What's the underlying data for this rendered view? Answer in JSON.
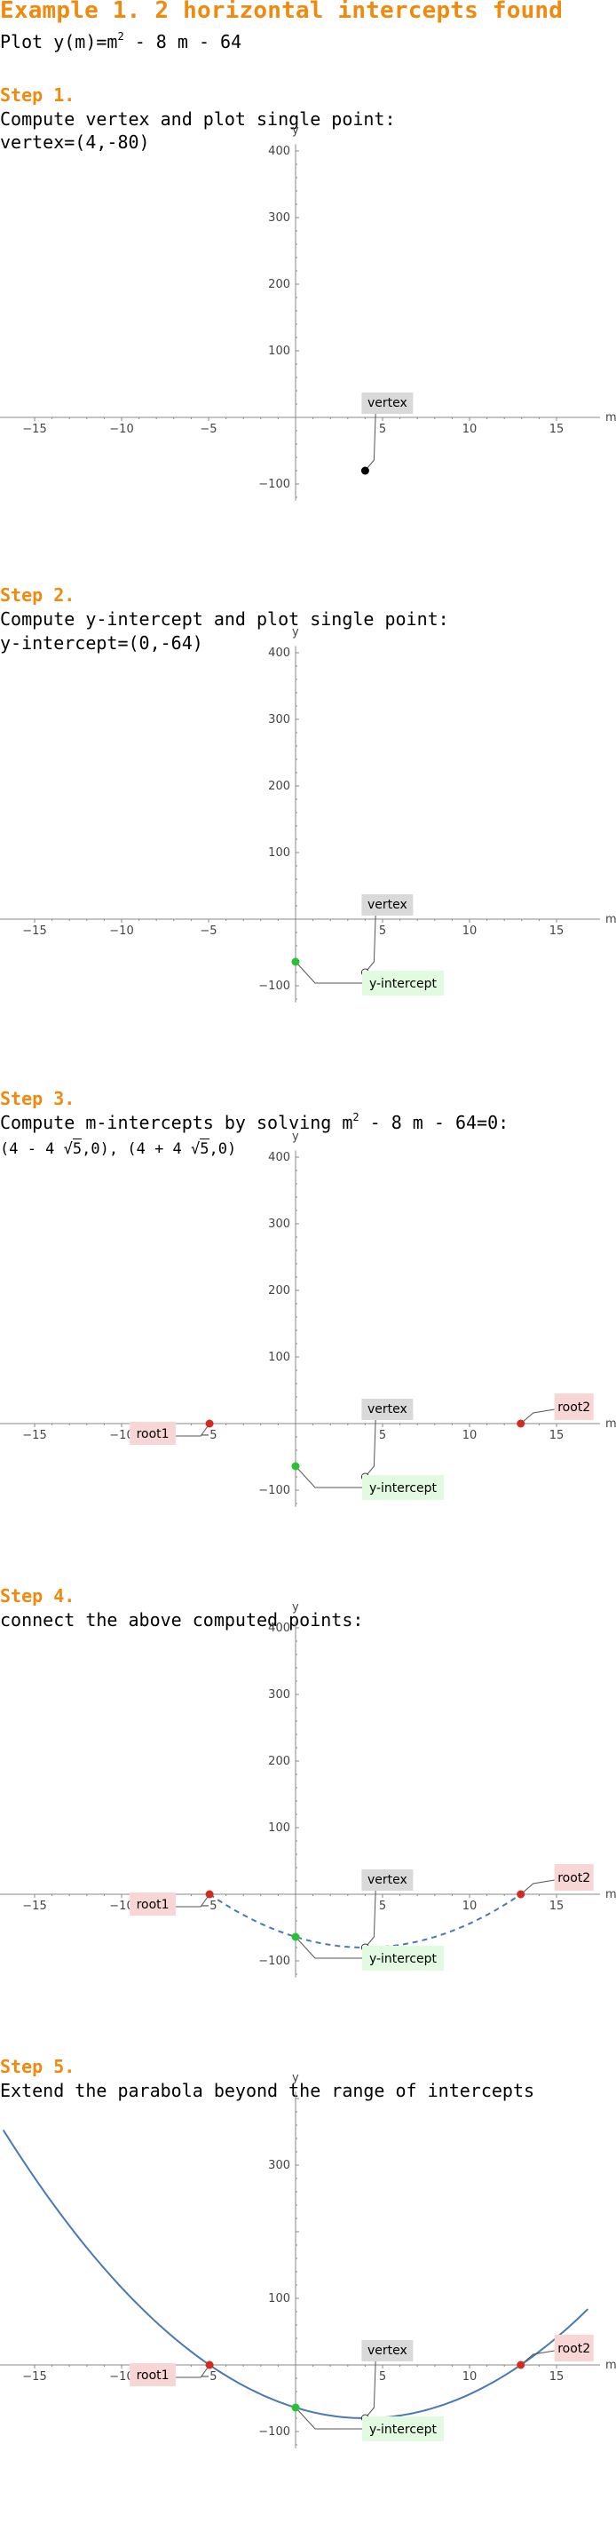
{
  "title": "Example 1. 2 horizontal intercepts found",
  "intro": {
    "text": "Plot y(m)=m",
    "exp": "2",
    "rest": " - 8 m - 64"
  },
  "steps": [
    {
      "heading": "Step 1.",
      "lines": [
        "Compute vertex and plot single point:",
        "vertex=(4,-80)"
      ]
    },
    {
      "heading": "Step 2.",
      "lines": [
        "Compute y-intercept and plot single point:",
        "y-intercept=(0,-64)"
      ]
    },
    {
      "heading": "Step 3.",
      "line1": {
        "a": "Compute m-intercepts by solving m",
        "exp": "2",
        "b": " - 8 m - 64=0:"
      },
      "roots": {
        "r1a": "(4 - 4 ",
        "r1rad": "5",
        "r1b": ",0),",
        "r2a": "(4 + 4 ",
        "r2rad": "5",
        "r2b": ",0)"
      }
    },
    {
      "heading": "Step 4.",
      "lines": [
        "connect the above computed points:"
      ]
    },
    {
      "heading": "Step 5.",
      "lines": [
        "Extend the parabola beyond the range of intercepts"
      ]
    }
  ],
  "colors": {
    "heading": "#f08a0f",
    "curve": "#4a78b5",
    "vertex_box": "#d9d9d9",
    "yint_box": "#e2fbe0",
    "root_box": "#f9d6d6",
    "green_point": "#27c233",
    "red_point": "#d42a20"
  },
  "chart_data": [
    {
      "type": "scatter",
      "xlabel": "m",
      "ylabel": "y",
      "xlim": [
        -17,
        17.5
      ],
      "ylim": [
        -125,
        410
      ],
      "xticks": [
        -15,
        -10,
        -5,
        5,
        10,
        15
      ],
      "yticks": [
        -100,
        100,
        200,
        300,
        400
      ],
      "points": [
        {
          "x": 4,
          "y": -80,
          "label": "vertex",
          "style": "black"
        }
      ]
    },
    {
      "type": "scatter",
      "xlabel": "m",
      "ylabel": "y",
      "xlim": [
        -17,
        17.5
      ],
      "ylim": [
        -125,
        410
      ],
      "xticks": [
        -15,
        -10,
        -5,
        5,
        10,
        15
      ],
      "yticks": [
        -100,
        100,
        200,
        300,
        400
      ],
      "points": [
        {
          "x": 4,
          "y": -80,
          "label": "vertex",
          "style": "open"
        },
        {
          "x": 0,
          "y": -64,
          "label": "y-intercept",
          "style": "green"
        }
      ]
    },
    {
      "type": "scatter",
      "xlabel": "m",
      "ylabel": "y",
      "xlim": [
        -17,
        17.5
      ],
      "ylim": [
        -125,
        410
      ],
      "xticks": [
        -15,
        -10,
        -5,
        5,
        10,
        15
      ],
      "yticks": [
        -100,
        100,
        200,
        300,
        400
      ],
      "points": [
        {
          "x": 4,
          "y": -80,
          "label": "vertex",
          "style": "open"
        },
        {
          "x": 0,
          "y": -64,
          "label": "y-intercept",
          "style": "green"
        },
        {
          "x": -4.944,
          "y": 0,
          "label": "root1",
          "style": "red"
        },
        {
          "x": 12.944,
          "y": 0,
          "label": "root2",
          "style": "red"
        }
      ]
    },
    {
      "type": "line",
      "xlabel": "m",
      "ylabel": "y",
      "xlim": [
        -17,
        17.5
      ],
      "ylim": [
        -125,
        410
      ],
      "xticks": [
        -15,
        -10,
        -5,
        5,
        10,
        15
      ],
      "yticks": [
        -100,
        100,
        200,
        300,
        400
      ],
      "curve": {
        "function": "m^2 - 8 m - 64",
        "from": -4.944,
        "to": 12.944,
        "dashed": true
      },
      "points": [
        {
          "x": 4,
          "y": -80,
          "label": "vertex",
          "style": "open"
        },
        {
          "x": 0,
          "y": -64,
          "label": "y-intercept",
          "style": "green"
        },
        {
          "x": -4.944,
          "y": 0,
          "label": "root1",
          "style": "red"
        },
        {
          "x": 12.944,
          "y": 0,
          "label": "root2",
          "style": "red"
        }
      ]
    },
    {
      "type": "line",
      "xlabel": "m",
      "ylabel": "y",
      "xlim": [
        -17,
        17.5
      ],
      "ylim": [
        -125,
        410
      ],
      "xticks": [
        -15,
        -10,
        -5,
        5,
        10,
        15
      ],
      "yticks": [
        -100,
        100,
        300
      ],
      "curve": {
        "function": "m^2 - 8 m - 64",
        "from": -16.8,
        "to": 16.8,
        "dashed": false
      },
      "points": [
        {
          "x": 4,
          "y": -80,
          "label": "vertex",
          "style": "open"
        },
        {
          "x": 0,
          "y": -64,
          "label": "y-intercept",
          "style": "green"
        },
        {
          "x": -4.944,
          "y": 0,
          "label": "root1",
          "style": "red"
        },
        {
          "x": 12.944,
          "y": 0,
          "label": "root2",
          "style": "red"
        }
      ]
    }
  ]
}
